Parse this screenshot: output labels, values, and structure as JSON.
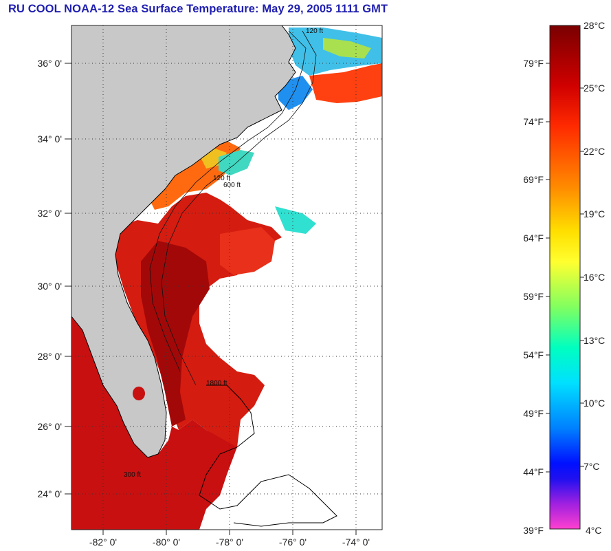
{
  "title": "RU COOL  NOAA-12  Sea Surface Temperature:  May 29, 2005 1111 GMT",
  "map": {
    "lat_labels": [
      {
        "value": 36,
        "text": "36° 0'"
      },
      {
        "value": 34,
        "text": "34° 0'"
      },
      {
        "value": 32,
        "text": "32° 0'"
      },
      {
        "value": 30,
        "text": "30° 0'"
      },
      {
        "value": 28,
        "text": "28° 0'"
      },
      {
        "value": 26,
        "text": "26° 0'"
      },
      {
        "value": 24,
        "text": "24° 0'"
      }
    ],
    "lon_labels": [
      {
        "value": -82,
        "text": "-82° 0'"
      },
      {
        "value": -80,
        "text": "-80° 0'"
      },
      {
        "value": -78,
        "text": "-78° 0'"
      },
      {
        "value": -76,
        "text": "-76° 0'"
      },
      {
        "value": -74,
        "text": "-74° 0'"
      }
    ],
    "lat_range": [
      23,
      37.1
    ],
    "lon_range": [
      -83,
      -73.3
    ],
    "contour_labels": [
      "120 ft",
      "600 ft",
      "1800 ft",
      "300 ft"
    ],
    "land_color": "#c8c8c8",
    "cloud_color": "#ffffff",
    "grid": "dotted"
  },
  "colorbar": {
    "celsius_labels": [
      "28°C",
      "25°C",
      "22°C",
      "19°C",
      "16°C",
      "13°C",
      "10°C",
      "7°C",
      "4°C"
    ],
    "fahrenheit_labels": [
      "79°F",
      "74°F",
      "69°F",
      "64°F",
      "59°F",
      "54°F",
      "49°F",
      "44°F",
      "39°F"
    ],
    "celsius_range": [
      4,
      28
    ],
    "fahrenheit_range": [
      39,
      82.4
    ],
    "colors": [
      "#7a0000",
      "#c80000",
      "#ff2000",
      "#ff7a00",
      "#ffd000",
      "#ffff00",
      "#80ff40",
      "#00ffb0",
      "#00e8ff",
      "#0090ff",
      "#0020ff",
      "#4020d0",
      "#c020e0",
      "#ff40d0"
    ]
  }
}
